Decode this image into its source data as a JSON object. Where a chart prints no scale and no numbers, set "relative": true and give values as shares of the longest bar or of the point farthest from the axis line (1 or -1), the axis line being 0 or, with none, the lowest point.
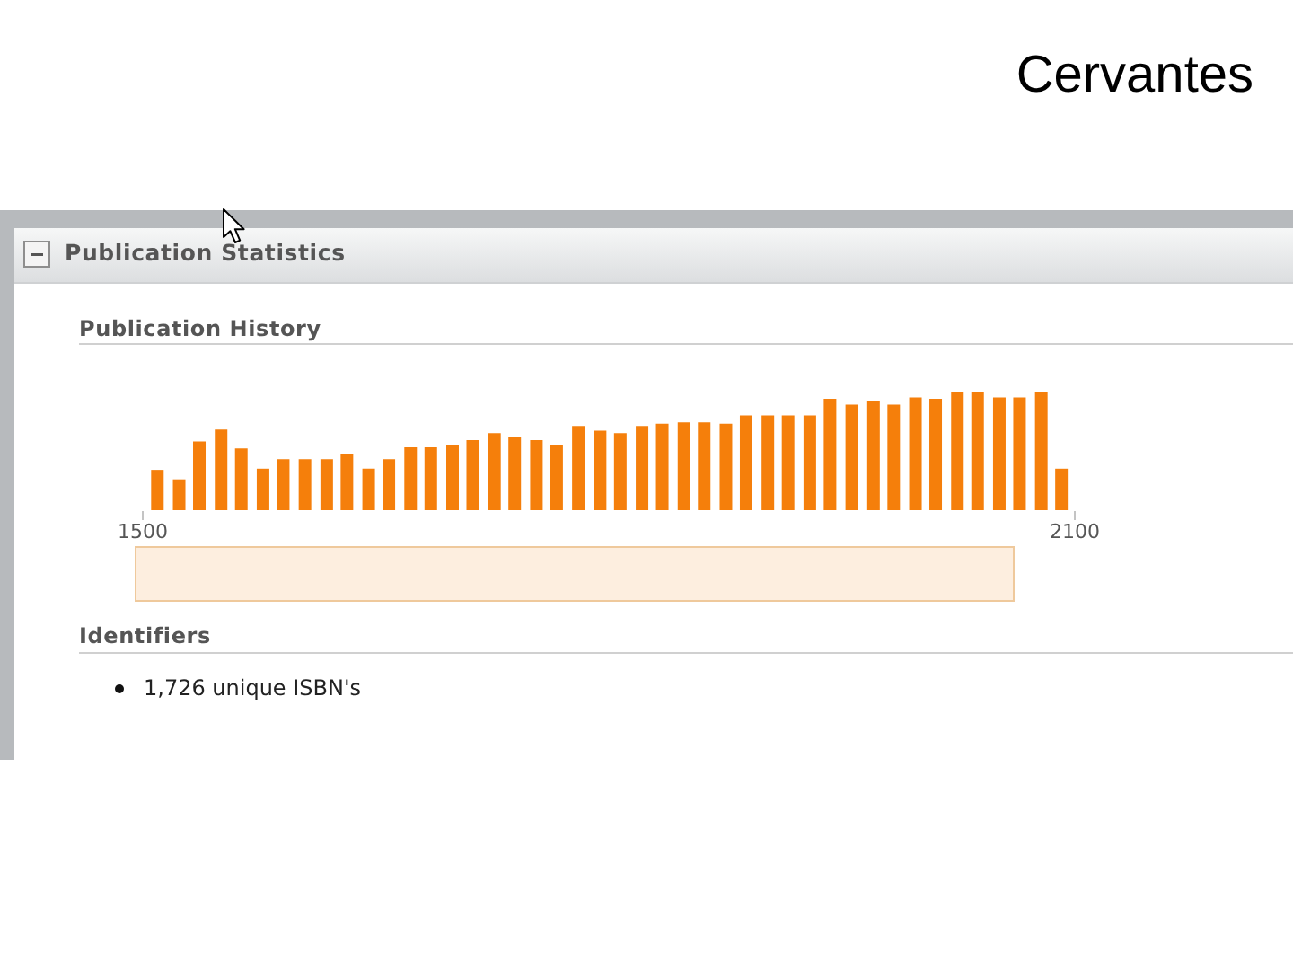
{
  "chart_data": {
    "type": "bar",
    "title": "Cervantes",
    "subtitle": "Publication History",
    "annotations": [
      "Publication Statistics",
      "Identifiers",
      "1,726 unique ISBN's"
    ],
    "x": [
      1510,
      1524,
      1537,
      1551,
      1564,
      1578,
      1591,
      1605,
      1619,
      1632,
      1646,
      1659,
      1673,
      1686,
      1700,
      1713,
      1727,
      1740,
      1754,
      1767,
      1781,
      1795,
      1808,
      1822,
      1835,
      1849,
      1862,
      1876,
      1889,
      1903,
      1916,
      1930,
      1943,
      1957,
      1971,
      1984,
      1998,
      2011,
      2025,
      2038,
      2052,
      2065,
      2079,
      2092
    ],
    "values": [
      0.34,
      0.26,
      0.58,
      0.68,
      0.52,
      0.35,
      0.43,
      0.43,
      0.43,
      0.47,
      0.35,
      0.43,
      0.53,
      0.53,
      0.55,
      0.59,
      0.65,
      0.62,
      0.59,
      0.55,
      0.71,
      0.67,
      0.65,
      0.71,
      0.73,
      0.74,
      0.74,
      0.73,
      0.8,
      0.8,
      0.8,
      0.8,
      0.94,
      0.89,
      0.92,
      0.89,
      0.95,
      0.94,
      1,
      1,
      0.95,
      0.95,
      1,
      0.35
    ],
    "color": "#f57f0b",
    "relative": true,
    "xlim": [
      1500,
      2100
    ],
    "xticks": [
      1500,
      2100
    ]
  }
}
